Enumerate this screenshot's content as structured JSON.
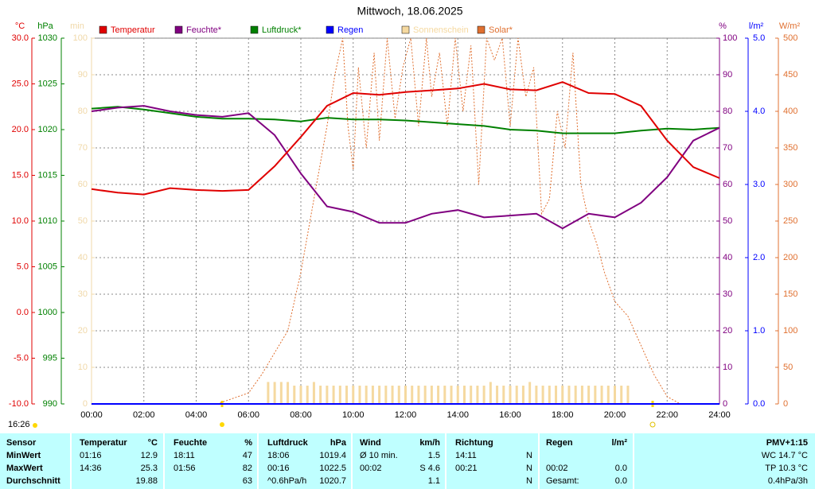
{
  "chart_data": {
    "type": "line",
    "title": "Mittwoch, 18.06.2025",
    "updated": "16:26",
    "grid": true,
    "xlim": [
      0,
      24
    ],
    "xticks": [
      {
        "value": 0,
        "label": "00:00"
      },
      {
        "value": 2,
        "label": "02:00"
      },
      {
        "value": 4,
        "label": "04:00"
      },
      {
        "value": 6,
        "label": "06:00"
      },
      {
        "value": 8,
        "label": "08:00"
      },
      {
        "value": 10,
        "label": "10:00"
      },
      {
        "value": 12,
        "label": "12:00"
      },
      {
        "value": 14,
        "label": "14:00"
      },
      {
        "value": 16,
        "label": "16:00"
      },
      {
        "value": 18,
        "label": "18:00"
      },
      {
        "value": 20,
        "label": "20:00"
      },
      {
        "value": 22,
        "label": "22:00"
      },
      {
        "value": 24,
        "label": "24:00"
      }
    ],
    "yaxes": [
      {
        "label": "°C",
        "color": "#e00000",
        "ylim": [
          -10,
          30
        ],
        "yticks": [
          {
            "value": 30,
            "label": "30.0"
          },
          {
            "value": 25,
            "label": "25.0"
          },
          {
            "value": 20,
            "label": "20.0"
          },
          {
            "value": 15,
            "label": "15.0"
          },
          {
            "value": 10,
            "label": "10.0"
          },
          {
            "value": 5,
            "label": "5.0"
          },
          {
            "value": 0,
            "label": "0.0"
          },
          {
            "value": -5,
            "label": "-5.0"
          },
          {
            "value": -10,
            "label": "-10.0"
          }
        ]
      },
      {
        "label": "hPa",
        "color": "#008000",
        "ylim": [
          990,
          1030
        ],
        "yticks": [
          1030,
          1025,
          1020,
          1015,
          1010,
          1005,
          1000,
          995,
          990
        ]
      },
      {
        "label": "min",
        "color": "#f0d8a8",
        "ylim": [
          0,
          100
        ],
        "yticks": [
          100,
          90,
          80,
          70,
          60,
          50,
          40,
          30,
          20,
          10,
          0
        ]
      },
      {
        "label": "%",
        "color": "#800080",
        "ylim": [
          0,
          100
        ],
        "yticks": [
          100,
          90,
          80,
          70,
          60,
          50,
          40,
          30,
          20,
          10,
          0
        ]
      },
      {
        "label": "l/m²",
        "color": "#0000ff",
        "ylim": [
          0,
          5
        ],
        "yticks": [
          {
            "value": 5,
            "label": "5.0"
          },
          {
            "value": 4,
            "label": "4.0"
          },
          {
            "value": 3,
            "label": "3.0"
          },
          {
            "value": 2,
            "label": "2.0"
          },
          {
            "value": 1,
            "label": "1.0"
          },
          {
            "value": 0,
            "label": "0.0"
          }
        ]
      },
      {
        "label": "W/m²",
        "color": "#e07030",
        "ylim": [
          0,
          500
        ],
        "yticks": [
          500,
          450,
          400,
          350,
          300,
          250,
          200,
          150,
          100,
          50,
          0
        ]
      }
    ],
    "x": [
      0,
      1,
      2,
      3,
      4,
      5,
      6,
      7,
      8,
      9,
      10,
      11,
      12,
      13,
      14,
      15,
      16,
      17,
      18,
      19,
      20,
      21,
      22,
      23,
      24
    ],
    "series": [
      {
        "name": "Temperatur",
        "color": "#e00000",
        "axis": 0,
        "type": "line",
        "values": [
          13.5,
          13.1,
          12.9,
          13.6,
          13.4,
          13.3,
          13.4,
          16.0,
          19.2,
          22.6,
          24.0,
          23.8,
          24.1,
          24.3,
          24.5,
          25.0,
          24.4,
          24.3,
          25.2,
          24.0,
          23.9,
          22.6,
          18.8,
          15.9,
          14.7
        ]
      },
      {
        "name": "Feuchte*",
        "color": "#800080",
        "axis": 3,
        "type": "line",
        "values": [
          80,
          81,
          81.5,
          80,
          79,
          78.5,
          79.5,
          73.5,
          63,
          54,
          52.5,
          49.5,
          49.5,
          52,
          53,
          51,
          51.5,
          52,
          48,
          52,
          51,
          55,
          62,
          72,
          75.5
        ]
      },
      {
        "name": "Luftdruck*",
        "color": "#008000",
        "axis": 1,
        "type": "line",
        "values": [
          1022.3,
          1022.5,
          1022.2,
          1021.8,
          1021.4,
          1021.2,
          1021.2,
          1021.1,
          1020.9,
          1021.3,
          1021.1,
          1021.1,
          1021.0,
          1020.8,
          1020.6,
          1020.4,
          1020.0,
          1019.9,
          1019.6,
          1019.6,
          1019.6,
          1019.9,
          1020.1,
          1020.0,
          1020.2
        ]
      },
      {
        "name": "Regen",
        "color": "#0000ff",
        "axis": 4,
        "type": "line",
        "x": [
          0,
          24
        ],
        "values": [
          0,
          0
        ]
      },
      {
        "name": "Sonnenschein",
        "color": "#f5d9a0",
        "axis": 2,
        "type": "bar",
        "x": [
          6.75,
          7,
          7.25,
          7.5,
          7.75,
          8,
          8.25,
          8.5,
          8.75,
          9,
          9.25,
          9.5,
          9.75,
          10,
          10.25,
          10.5,
          10.75,
          11,
          11.25,
          11.5,
          11.75,
          12,
          12.25,
          12.5,
          12.75,
          13,
          13.25,
          13.5,
          13.75,
          14,
          14.25,
          14.5,
          14.75,
          15,
          15.25,
          15.5,
          15.75,
          16,
          16.25,
          16.5,
          16.75,
          17,
          17.25,
          17.5,
          17.75,
          18,
          18.25,
          18.5,
          18.75,
          19,
          19.25,
          19.5,
          19.75,
          20,
          20.25,
          20.5
        ],
        "values": [
          6,
          6,
          6,
          6,
          5,
          5,
          5,
          6,
          5,
          5,
          5,
          5,
          5,
          5,
          5,
          5,
          5,
          5,
          5,
          5,
          5,
          5,
          5,
          5,
          5,
          5,
          5,
          5,
          5,
          5,
          5,
          5,
          5,
          5,
          6,
          5,
          5,
          5,
          5,
          5,
          6,
          5,
          5,
          5,
          5,
          5,
          5,
          5,
          5,
          5,
          5,
          5,
          5,
          5,
          5,
          5
        ]
      },
      {
        "name": "Solar*",
        "color": "#e07030",
        "axis": 5,
        "type": "line",
        "dashed": true,
        "x": [
          4.8,
          6,
          6.5,
          7,
          7.5,
          8,
          8.5,
          9,
          9.3,
          9.6,
          9.8,
          10,
          10.2,
          10.5,
          10.8,
          11,
          11.3,
          11.6,
          11.9,
          12.2,
          12.5,
          12.8,
          13,
          13.3,
          13.6,
          13.9,
          14.2,
          14.5,
          14.8,
          15.1,
          15.4,
          15.7,
          16,
          16.3,
          16.6,
          16.9,
          17.2,
          17.5,
          17.8,
          18.1,
          18.4,
          18.7,
          19,
          19.3,
          19.6,
          20,
          20.5,
          21,
          21.5,
          22,
          22.5
        ],
        "values": [
          0,
          15,
          40,
          70,
          100,
          180,
          280,
          380,
          450,
          500,
          380,
          320,
          460,
          350,
          480,
          360,
          500,
          390,
          460,
          500,
          380,
          500,
          420,
          480,
          380,
          500,
          400,
          490,
          300,
          500,
          470,
          500,
          380,
          500,
          420,
          460,
          260,
          280,
          400,
          350,
          480,
          300,
          250,
          220,
          180,
          140,
          120,
          80,
          40,
          10,
          0
        ]
      }
    ]
  },
  "table": {
    "header": [
      "Sensor",
      "Temperatur",
      "°C",
      "Feuchte",
      "%",
      "Luftdruck",
      "hPa",
      "Wind",
      "km/h",
      "Richtung",
      null,
      "Regen",
      "l/m²",
      "PMV+1:15"
    ],
    "rows": [
      [
        "MinWert",
        "01:16",
        "12.9",
        "18:11",
        "47",
        "18:06",
        "1019.4",
        "Ø 10 min.",
        "1.5",
        "14:11",
        "N",
        null,
        null,
        "WC 14.7 °C"
      ],
      [
        "MaxWert",
        "14:36",
        "25.3",
        "01:56",
        "82",
        "00:16",
        "1022.5",
        "00:02",
        "S 4.6",
        "00:21",
        "N",
        "00:02",
        "0.0",
        "TP 10.3 °C"
      ],
      [
        "Durchschnitt",
        null,
        "19.88",
        null,
        "63",
        "^0.6hPa/h",
        "1020.7",
        null,
        "1.1",
        null,
        "N",
        "Gesamt:",
        "0.0",
        "0.4hPa/3h"
      ]
    ]
  }
}
